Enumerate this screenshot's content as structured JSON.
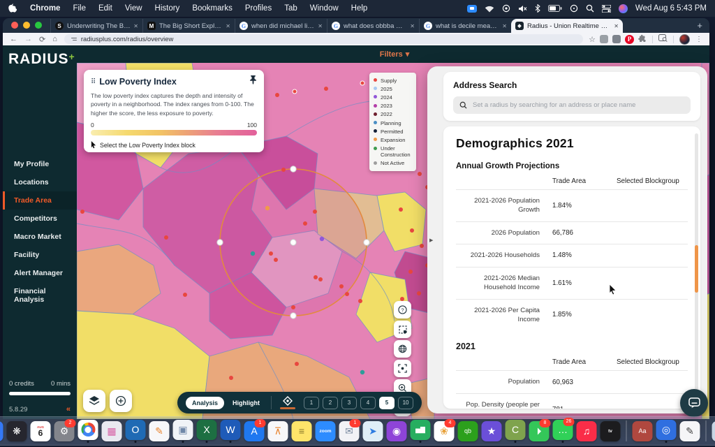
{
  "menubar": {
    "app_name": "Chrome",
    "menus": [
      "File",
      "Edit",
      "View",
      "History",
      "Bookmarks",
      "Profiles",
      "Tab",
      "Window",
      "Help"
    ],
    "clock": "Wed Aug 6  5:43 PM"
  },
  "browser": {
    "tabs": [
      {
        "title": "Underwriting The Big Short |",
        "favicon": "s-circle",
        "active": false
      },
      {
        "title": "The Big Short Explained — H",
        "favicon": "medium",
        "active": false
      },
      {
        "title": "when did michael litt write th",
        "favicon": "google",
        "active": false
      },
      {
        "title": "what does obbba mean - Go",
        "favicon": "google",
        "active": false
      },
      {
        "title": "what is decile mean - Googl",
        "favicon": "google",
        "active": false
      },
      {
        "title": "Radius - Union Realtime LLC",
        "favicon": "radius",
        "active": true
      }
    ],
    "url": "radiusplus.com/radius/overview"
  },
  "app": {
    "logo_text": "RADIUS",
    "logo_plus": "+",
    "filters_label": "Filters",
    "filters_caret": "▾",
    "nav_items": [
      {
        "label": "My Profile",
        "active": false
      },
      {
        "label": "Locations",
        "active": false
      },
      {
        "label": "Trade Area",
        "active": true
      },
      {
        "label": "Competitors",
        "active": false
      },
      {
        "label": "Macro Market",
        "active": false
      },
      {
        "label": "Facility",
        "active": false
      },
      {
        "label": "Alert Manager",
        "active": false
      },
      {
        "label": "Financial Analysis",
        "active": false
      }
    ],
    "credits_label": "0 credits",
    "minutes_label": "0 mins",
    "version": "5.8.29",
    "collapse_glyph": "«"
  },
  "lpi_card": {
    "title": "Low Poverty Index",
    "description": "The low poverty index captures the depth and intensity of poverty in a neighborhood. The index ranges from 0-100. The higher the score, the less exposure to poverty.",
    "scale_min": "0",
    "scale_max": "100",
    "hint": "Select the Low Poverty Index block",
    "drag_glyph": "⠿"
  },
  "legend": {
    "items": [
      {
        "label": "Supply",
        "color": "#e8473f"
      },
      {
        "label": "2025",
        "color": "#a9c9f2"
      },
      {
        "label": "2024",
        "color": "#9157d8"
      },
      {
        "label": "2023",
        "color": "#b33fa8"
      },
      {
        "label": "2022",
        "color": "#6e1f2e"
      },
      {
        "label": "Planning",
        "color": "#4a8fc4"
      },
      {
        "label": "Permitted",
        "color": "#152238"
      },
      {
        "label": "Expansion",
        "color": "#f09a4a"
      },
      {
        "label": "Under Construction",
        "color": "#3f9b4f"
      },
      {
        "label": "Not Active",
        "color": "#9e9e9e"
      }
    ]
  },
  "map_toolbar": {
    "analysis_label": "Analysis",
    "highlight_label": "Highlight",
    "radii": [
      "1",
      "2",
      "3",
      "4",
      "5",
      "10"
    ],
    "active_radius": "5"
  },
  "panel": {
    "address_search_title": "Address Search",
    "search_placeholder": "Set a radius by searching for an address or place name",
    "demographics_title": "Demographics 2021",
    "expand_glyph": "▶",
    "sections": [
      {
        "heading": "Annual Growth Projections",
        "big": false,
        "columns": [
          "Trade Area",
          "Selected Blockgroup"
        ],
        "rows": [
          {
            "label": "2021-2026 Population Growth",
            "values": [
              "1.84%",
              ""
            ]
          },
          {
            "label": "2026 Population",
            "values": [
              "66,786",
              ""
            ]
          },
          {
            "label": "2021-2026 Households",
            "values": [
              "1.48%",
              ""
            ]
          },
          {
            "label": "2021-2026 Median Household Income",
            "values": [
              "1.61%",
              ""
            ]
          },
          {
            "label": "2021-2026 Per Capita Income",
            "values": [
              "1.85%",
              ""
            ]
          }
        ]
      },
      {
        "heading": "2021",
        "big": true,
        "columns": [
          "Trade Area",
          "Selected Blockgroup"
        ],
        "rows": [
          {
            "label": "Population",
            "values": [
              "60,963",
              ""
            ]
          },
          {
            "label": "Pop. Density (people per sq. mile)",
            "values": [
              "781",
              ""
            ]
          },
          {
            "label": "",
            "values": [
              "",
              ""
            ]
          }
        ]
      }
    ]
  },
  "dock": {
    "items": [
      {
        "name": "finder",
        "glyph": "☺",
        "bg": "#3b9ae8",
        "running": true
      },
      {
        "name": "safari",
        "glyph": "⌖",
        "bg": "#3478f6"
      },
      {
        "name": "media-app",
        "glyph": "❋",
        "bg": "#26262e"
      },
      {
        "name": "calendar",
        "type": "calendar",
        "top": "AUG",
        "num": "6",
        "bg": "#ffffff"
      },
      {
        "name": "system-settings",
        "glyph": "⚙",
        "bg": "#83858c",
        "badge": "2"
      },
      {
        "name": "chrome",
        "type": "chrome",
        "bg": "#ffffff",
        "running": true
      },
      {
        "name": "launchpad",
        "glyph": "▦",
        "bg": "#e9e9f0",
        "fg": "#d65fa4"
      },
      {
        "name": "outlook",
        "glyph": "O",
        "bg": "#1f6ab4",
        "running": true
      },
      {
        "name": "pages",
        "glyph": "✎",
        "bg": "#f7f7f9",
        "fg": "#e8842f"
      },
      {
        "name": "preview",
        "glyph": "▣",
        "bg": "#f0f3f7",
        "fg": "#6f87a8",
        "running": true
      },
      {
        "name": "excel",
        "glyph": "X",
        "bg": "#1d6f42",
        "running": true
      },
      {
        "name": "word",
        "glyph": "W",
        "bg": "#1e5bb8",
        "running": true
      },
      {
        "name": "app-store",
        "glyph": "A",
        "bg": "#1f78f0",
        "badge": "1"
      },
      {
        "name": "keynote",
        "glyph": "⊼",
        "bg": "#f7f7f9",
        "fg": "#e8842f"
      },
      {
        "name": "notes",
        "glyph": "≡",
        "bg": "#ffe46a",
        "fg": "#8a7a2a"
      },
      {
        "name": "zoom",
        "type": "text",
        "text": "zoom",
        "bg": "#2d8cff"
      },
      {
        "name": "mail",
        "glyph": "✉",
        "bg": "#f2f2f6",
        "fg": "#7a8aa0",
        "badge": "1"
      },
      {
        "name": "maps",
        "glyph": "➤",
        "bg": "#dfeef7",
        "fg": "#2f7de1"
      },
      {
        "name": "podcasts",
        "glyph": "◉",
        "bg": "#8e44d8"
      },
      {
        "name": "numbers",
        "glyph": "▅▇",
        "bg": "#27ae60",
        "running": true
      },
      {
        "name": "photos",
        "glyph": "❀",
        "bg": "#ffffff",
        "fg": "#e8a33d",
        "badge": "4"
      },
      {
        "name": "quickbooks",
        "glyph": "qb",
        "bg": "#2ca01c"
      },
      {
        "name": "star-app",
        "glyph": "★",
        "bg": "#6b4fd8"
      },
      {
        "name": "camtasia",
        "glyph": "C",
        "bg": "#7fa34d",
        "running": true
      },
      {
        "name": "facetime",
        "glyph": "⏵",
        "bg": "#34c759",
        "badge": "8"
      },
      {
        "name": "messages",
        "glyph": "…",
        "bg": "#30d158",
        "badge": "26",
        "running": true
      },
      {
        "name": "music",
        "glyph": "♫",
        "bg": "#fa2d48"
      },
      {
        "name": "apple-tv",
        "type": "text",
        "text": "tv",
        "bg": "#1c1c1e"
      },
      {
        "name": "divider",
        "type": "divider"
      },
      {
        "name": "dictionary",
        "glyph": "Aa",
        "bg": "#b0483f"
      },
      {
        "name": "one-password",
        "glyph": "◎",
        "bg": "#2f6fe0",
        "running": true
      },
      {
        "name": "drafts",
        "glyph": "✎",
        "bg": "#f5f5f7",
        "fg": "#444"
      },
      {
        "name": "divider",
        "type": "divider"
      },
      {
        "name": "screenshot-file",
        "glyph": "▤",
        "bg": "#c8d5e4",
        "fg": "#5a6e86"
      },
      {
        "name": "trash",
        "glyph": "▥",
        "bg": "#9aa3ad"
      }
    ]
  },
  "theme": {
    "teal": "#0e2a30",
    "accent_orange": "#f05a28",
    "logo_green": "#8dc63f",
    "scrollbar_orange": "#ef9549"
  }
}
